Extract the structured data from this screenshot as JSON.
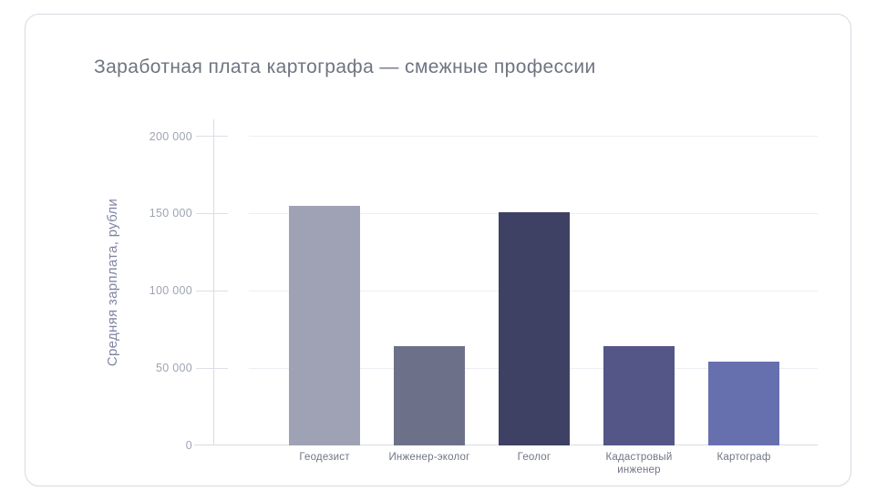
{
  "page_title": "Заработная плата картографа — смежные профессии",
  "chart_data": {
    "type": "bar",
    "title": "Заработная плата картографа — смежные профессии",
    "xlabel": "",
    "ylabel": "Средняя зарплата, рубли",
    "categories": [
      "Геодезист",
      "Инженер-эколог",
      "Геолог",
      "Кадастровый инженер",
      "Картограф"
    ],
    "values": [
      155000,
      64000,
      151000,
      64000,
      54000
    ],
    "bar_colors": [
      "#9FA1B4",
      "#6D7089",
      "#3E4164",
      "#535687",
      "#6770AE"
    ],
    "yticks": [
      0,
      50000,
      100000,
      150000,
      200000
    ],
    "ytick_labels": [
      "0",
      "50 000",
      "100 000",
      "150 000",
      "200 000"
    ],
    "ylim": [
      0,
      211000
    ],
    "grid": "horizontal gridlines on",
    "legend": "none"
  },
  "colors": {
    "background": "#FFFFFF",
    "card_border": "#D8DBE3",
    "grid_line": "#EDEEF4",
    "axis_line": "#D9DCE4",
    "title_text": "#6E7481",
    "ytick_text": "#9EA4B0",
    "category_text": "#6F7584",
    "ylabel_text": "#8184A4"
  }
}
